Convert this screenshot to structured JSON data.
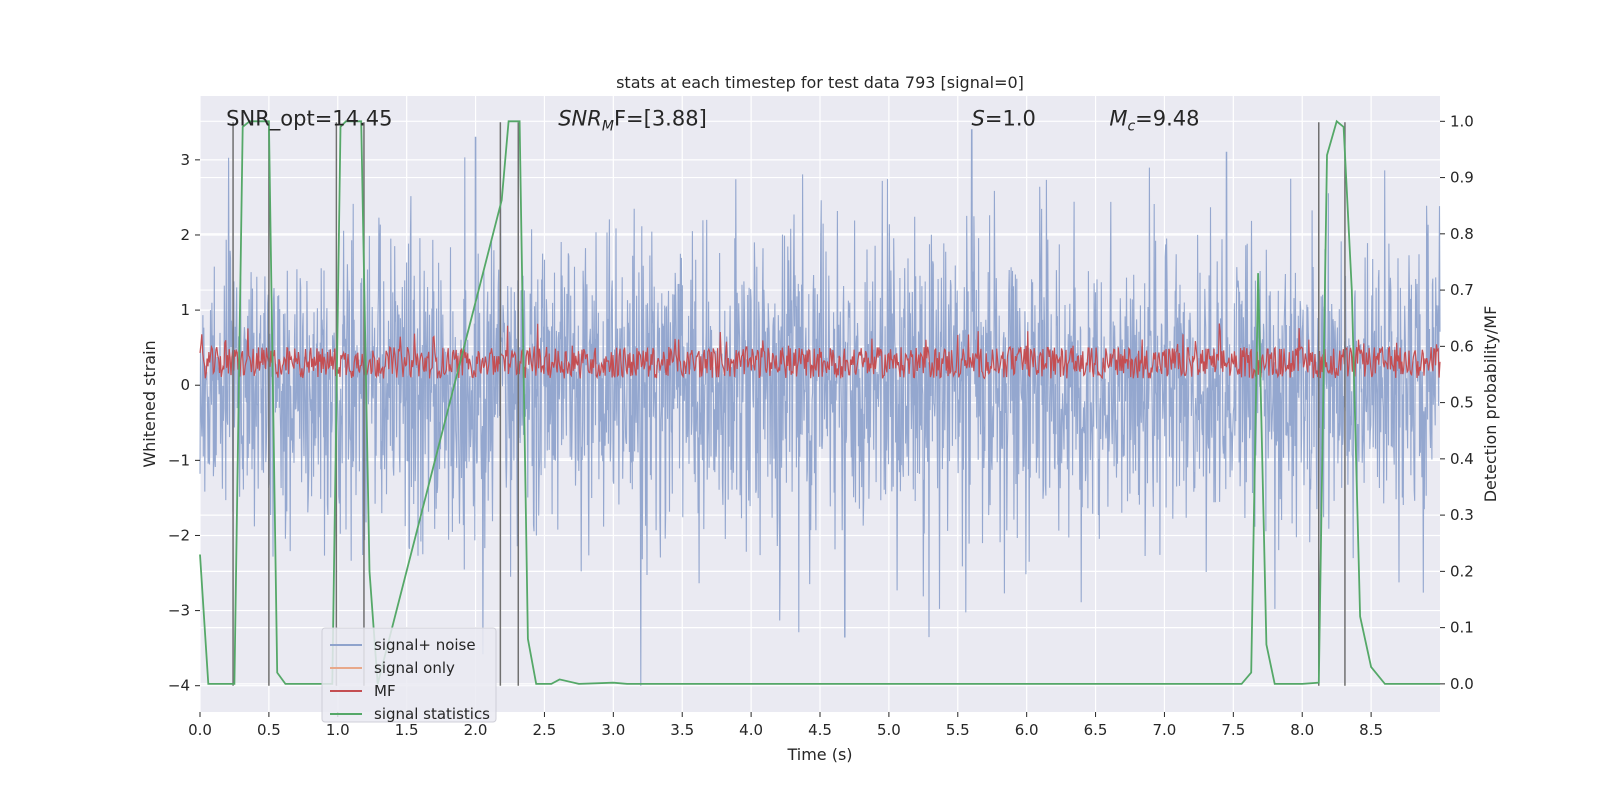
{
  "chart_data": {
    "type": "line",
    "title": "stats at each timestep for test data 793 [signal=0]",
    "xlabel": "Time (s)",
    "ylabel": "Whitened strain",
    "ylabel_right": "Detection probability/MF",
    "xlim": [
      0,
      9.0
    ],
    "ylim": [
      -4.35,
      3.85
    ],
    "ylim_right": [
      -0.05,
      1.045
    ],
    "xticks": [
      0.0,
      0.5,
      1.0,
      1.5,
      2.0,
      2.5,
      3.0,
      3.5,
      4.0,
      4.5,
      5.0,
      5.5,
      6.0,
      6.5,
      7.0,
      7.5,
      8.0,
      8.5
    ],
    "xtick_labels": [
      "0.0",
      "0.5",
      "1.0",
      "1.5",
      "2.0",
      "2.5",
      "3.0",
      "3.5",
      "4.0",
      "4.5",
      "5.0",
      "5.5",
      "6.0",
      "6.5",
      "7.0",
      "7.5",
      "8.0",
      "8.5"
    ],
    "yticks": [
      -4,
      -3,
      -2,
      -1,
      0,
      1,
      2,
      3
    ],
    "ytick_labels": [
      "−4",
      "−3",
      "−2",
      "−1",
      "0",
      "1",
      "2",
      "3"
    ],
    "yticks_right": [
      0.0,
      0.1,
      0.2,
      0.3,
      0.4,
      0.5,
      0.6,
      0.7,
      0.8,
      0.9,
      1.0
    ],
    "ytick_labels_right": [
      "0.0",
      "0.1",
      "0.2",
      "0.3",
      "0.4",
      "0.5",
      "0.6",
      "0.7",
      "0.8",
      "0.9",
      "1.0"
    ],
    "annotations": [
      {
        "id": "snr-opt",
        "text": "SNR_opt=14.45",
        "x": 0.19,
        "y": 3.55
      },
      {
        "id": "snr-mf",
        "prefix": "SNR",
        "sub": "M",
        "rest": "F=[3.88]",
        "x": 2.6,
        "y": 3.55
      },
      {
        "id": "s-value",
        "prefix": "S",
        "rest": "=1.0",
        "x": 5.6,
        "y": 3.55
      },
      {
        "id": "mc-value",
        "prefix": "M",
        "sub": "c",
        "rest": "=9.48",
        "x": 6.6,
        "y": 3.55
      }
    ],
    "legend": {
      "position": "lower-left",
      "entries": [
        {
          "label": "signal+ noise",
          "color": "#8fa3cc"
        },
        {
          "label": "signal only",
          "color": "#e8a88a"
        },
        {
          "label": "MF",
          "color": "#c44e52"
        },
        {
          "label": "signal statistics",
          "color": "#55a868"
        }
      ]
    },
    "series": [
      {
        "name": "signal statistics",
        "axis": "right",
        "color": "#55a868",
        "x": [
          0.0,
          0.06,
          0.25,
          0.31,
          0.36,
          0.5,
          0.56,
          0.62,
          0.96,
          1.02,
          1.06,
          1.1,
          1.17,
          1.23,
          1.29,
          2.19,
          2.24,
          2.27,
          2.32,
          2.38,
          2.44,
          2.55,
          2.61,
          2.75,
          3.0,
          3.1,
          4.0,
          5.0,
          6.0,
          7.0,
          7.56,
          7.63,
          7.68,
          7.74,
          7.8,
          8.0,
          8.12,
          8.18,
          8.25,
          8.3,
          8.36,
          8.42,
          8.5,
          8.6,
          9.0
        ],
        "y": [
          0.23,
          0.0,
          0.0,
          0.99,
          1.0,
          1.0,
          0.02,
          0.0,
          0.0,
          0.99,
          1.0,
          1.0,
          1.0,
          0.2,
          0.0,
          0.86,
          1.0,
          1.0,
          1.0,
          0.08,
          0.0,
          0.0,
          0.008,
          0.0,
          0.002,
          0.0,
          0.0,
          0.0,
          0.0,
          0.0,
          0.0,
          0.02,
          0.73,
          0.07,
          0.0,
          0.0,
          0.002,
          0.94,
          1.0,
          0.99,
          0.7,
          0.12,
          0.03,
          0.0,
          0.0
        ]
      },
      {
        "name": "MF",
        "axis": "left",
        "color": "#c44e52",
        "generated": "band",
        "center": 0.3,
        "spread": 0.42
      },
      {
        "name": "signal+ noise",
        "axis": "left",
        "color": "#8fa3cc",
        "generated": "noise",
        "sigma": 1.0,
        "spikes": [
          {
            "x": 2.0,
            "y": 3.3
          },
          {
            "x": 5.6,
            "y": 3.4
          },
          {
            "x": 7.45,
            "y": 3.1
          },
          {
            "x": 4.68,
            "y": -3.35
          },
          {
            "x": 3.2,
            "y": -4.0
          }
        ]
      }
    ],
    "vertical_markers": {
      "color": "#707070",
      "bottom": -4.0,
      "top": 3.5,
      "x": [
        0.24,
        0.5,
        0.99,
        1.19,
        2.18,
        2.31,
        8.12,
        8.31
      ]
    }
  }
}
